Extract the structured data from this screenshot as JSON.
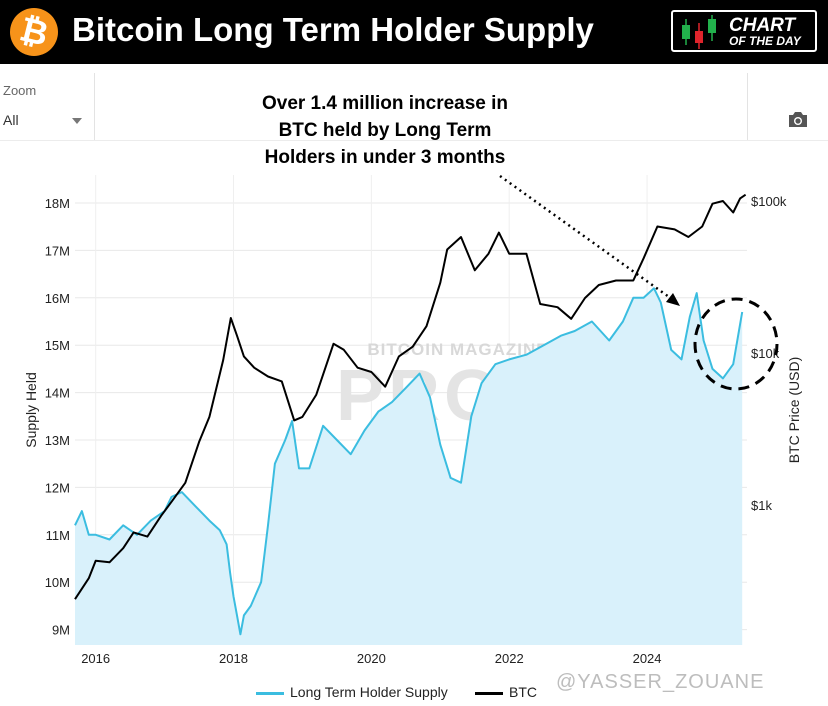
{
  "header": {
    "logo_glyph": "₿",
    "title": "Bitcoin Long Term Holder Supply",
    "badge_line1": "CHART",
    "badge_line2": "OF THE DAY"
  },
  "toolbar": {
    "zoom_label": "Zoom",
    "zoom_value": "All",
    "camera_icon": "camera-icon"
  },
  "annotation": {
    "line1": "Over 1.4 million increase in",
    "line2": "BTC held by Long Term",
    "line3": "Holders in under 3 months"
  },
  "watermark": {
    "center": "BITCOIN MAGAZINE PRO",
    "bottom": "@YASSER_ZOUANE"
  },
  "colors": {
    "lth_line": "#3bbde0",
    "lth_fill": "#d9f1fb",
    "btc_line": "#000000",
    "badge_green": "#22b14c",
    "badge_red": "#e0242c",
    "bitcoin_orange": "#f7931a"
  },
  "chart_data": {
    "type": "line",
    "xlabel": "",
    "ylabel": "Supply Held",
    "y2label": "BTC Price (USD)",
    "xlim": [
      2015.7,
      2025.45
    ],
    "ylim": [
      8.8,
      18.4
    ],
    "y2_scale": "log",
    "y2_ticks": [
      "$1k",
      "$10k",
      "$100k"
    ],
    "y2_tick_values": [
      1000,
      10000,
      100000
    ],
    "x_ticks": [
      "2016",
      "2018",
      "2020",
      "2022",
      "2024"
    ],
    "y_ticks": [
      "9M",
      "10M",
      "11M",
      "12M",
      "13M",
      "14M",
      "15M",
      "16M",
      "17M",
      "18M"
    ],
    "grid": true,
    "legend_position": "bottom",
    "series": [
      {
        "name": "Long Term Holder Supply",
        "axis": "left",
        "area": true,
        "points": [
          [
            2015.7,
            11.2
          ],
          [
            2015.8,
            11.5
          ],
          [
            2015.9,
            11.0
          ],
          [
            2016.0,
            11.0
          ],
          [
            2016.2,
            10.9
          ],
          [
            2016.4,
            11.2
          ],
          [
            2016.6,
            11.0
          ],
          [
            2016.8,
            11.3
          ],
          [
            2017.0,
            11.5
          ],
          [
            2017.1,
            11.8
          ],
          [
            2017.25,
            11.9
          ],
          [
            2017.45,
            11.6
          ],
          [
            2017.65,
            11.3
          ],
          [
            2017.8,
            11.1
          ],
          [
            2017.9,
            10.8
          ],
          [
            2017.95,
            10.2
          ],
          [
            2018.0,
            9.7
          ],
          [
            2018.05,
            9.3
          ],
          [
            2018.1,
            8.9
          ],
          [
            2018.15,
            9.3
          ],
          [
            2018.25,
            9.5
          ],
          [
            2018.4,
            10.0
          ],
          [
            2018.5,
            11.2
          ],
          [
            2018.6,
            12.5
          ],
          [
            2018.75,
            13.0
          ],
          [
            2018.85,
            13.4
          ],
          [
            2018.95,
            12.4
          ],
          [
            2019.1,
            12.4
          ],
          [
            2019.3,
            13.3
          ],
          [
            2019.5,
            13.0
          ],
          [
            2019.7,
            12.7
          ],
          [
            2019.9,
            13.2
          ],
          [
            2020.1,
            13.6
          ],
          [
            2020.3,
            13.8
          ],
          [
            2020.5,
            14.1
          ],
          [
            2020.7,
            14.4
          ],
          [
            2020.85,
            13.9
          ],
          [
            2021.0,
            12.9
          ],
          [
            2021.15,
            12.2
          ],
          [
            2021.3,
            12.1
          ],
          [
            2021.45,
            13.5
          ],
          [
            2021.6,
            14.2
          ],
          [
            2021.8,
            14.6
          ],
          [
            2022.0,
            14.7
          ],
          [
            2022.25,
            14.8
          ],
          [
            2022.5,
            15.0
          ],
          [
            2022.75,
            15.2
          ],
          [
            2022.95,
            15.3
          ],
          [
            2023.2,
            15.5
          ],
          [
            2023.45,
            15.1
          ],
          [
            2023.65,
            15.5
          ],
          [
            2023.8,
            16.0
          ],
          [
            2023.95,
            16.0
          ],
          [
            2024.1,
            16.2
          ],
          [
            2024.2,
            15.9
          ],
          [
            2024.35,
            14.9
          ],
          [
            2024.5,
            14.7
          ],
          [
            2024.62,
            15.6
          ],
          [
            2024.72,
            16.1
          ],
          [
            2024.82,
            15.1
          ],
          [
            2024.95,
            14.5
          ],
          [
            2025.1,
            14.3
          ],
          [
            2025.25,
            14.6
          ],
          [
            2025.38,
            15.7
          ]
        ]
      },
      {
        "name": "BTC",
        "axis": "right",
        "area": false,
        "points": [
          [
            2015.7,
            240
          ],
          [
            2015.9,
            330
          ],
          [
            2016.0,
            430
          ],
          [
            2016.2,
            420
          ],
          [
            2016.4,
            520
          ],
          [
            2016.55,
            660
          ],
          [
            2016.75,
            620
          ],
          [
            2016.95,
            850
          ],
          [
            2017.1,
            1050
          ],
          [
            2017.3,
            1400
          ],
          [
            2017.5,
            2600
          ],
          [
            2017.65,
            3800
          ],
          [
            2017.85,
            9000
          ],
          [
            2017.96,
            17000
          ],
          [
            2018.05,
            13000
          ],
          [
            2018.15,
            9500
          ],
          [
            2018.3,
            8000
          ],
          [
            2018.5,
            7000
          ],
          [
            2018.7,
            6500
          ],
          [
            2018.88,
            3600
          ],
          [
            2019.0,
            3800
          ],
          [
            2019.2,
            5300
          ],
          [
            2019.45,
            11500
          ],
          [
            2019.6,
            10500
          ],
          [
            2019.8,
            8000
          ],
          [
            2020.0,
            7500
          ],
          [
            2020.2,
            6000
          ],
          [
            2020.4,
            9500
          ],
          [
            2020.6,
            11000
          ],
          [
            2020.8,
            15000
          ],
          [
            2021.0,
            29000
          ],
          [
            2021.1,
            48000
          ],
          [
            2021.3,
            58000
          ],
          [
            2021.5,
            35000
          ],
          [
            2021.7,
            45000
          ],
          [
            2021.85,
            62000
          ],
          [
            2022.0,
            45000
          ],
          [
            2022.25,
            45000
          ],
          [
            2022.45,
            21000
          ],
          [
            2022.7,
            20000
          ],
          [
            2022.9,
            16800
          ],
          [
            2023.1,
            23000
          ],
          [
            2023.3,
            28000
          ],
          [
            2023.55,
            30000
          ],
          [
            2023.8,
            30000
          ],
          [
            2023.95,
            42000
          ],
          [
            2024.15,
            68000
          ],
          [
            2024.4,
            65000
          ],
          [
            2024.6,
            58000
          ],
          [
            2024.8,
            68000
          ],
          [
            2024.95,
            96000
          ],
          [
            2025.1,
            100000
          ],
          [
            2025.25,
            84000
          ],
          [
            2025.35,
            104000
          ],
          [
            2025.43,
            110000
          ]
        ]
      }
    ]
  }
}
